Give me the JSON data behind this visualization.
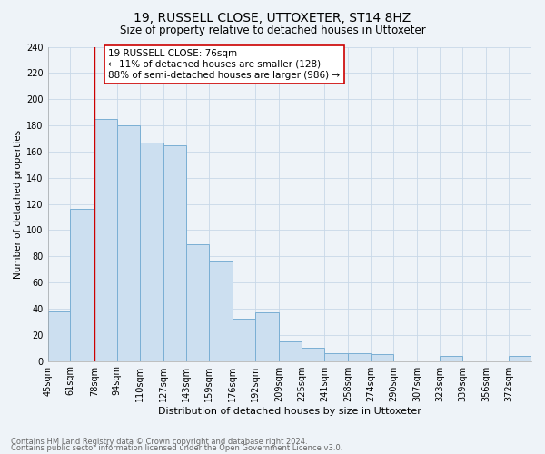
{
  "title": "19, RUSSELL CLOSE, UTTOXETER, ST14 8HZ",
  "subtitle": "Size of property relative to detached houses in Uttoxeter",
  "xlabel": "Distribution of detached houses by size in Uttoxeter",
  "ylabel": "Number of detached properties",
  "footnote1": "Contains HM Land Registry data © Crown copyright and database right 2024.",
  "footnote2": "Contains public sector information licensed under the Open Government Licence v3.0.",
  "bin_labels": [
    "45sqm",
    "61sqm",
    "78sqm",
    "94sqm",
    "110sqm",
    "127sqm",
    "143sqm",
    "159sqm",
    "176sqm",
    "192sqm",
    "209sqm",
    "225sqm",
    "241sqm",
    "258sqm",
    "274sqm",
    "290sqm",
    "307sqm",
    "323sqm",
    "339sqm",
    "356sqm",
    "372sqm"
  ],
  "bin_edges": [
    45,
    61,
    78,
    94,
    110,
    127,
    143,
    159,
    176,
    192,
    209,
    225,
    241,
    258,
    274,
    290,
    307,
    323,
    339,
    356,
    372,
    388
  ],
  "counts": [
    38,
    116,
    185,
    180,
    167,
    165,
    89,
    77,
    32,
    37,
    15,
    10,
    6,
    6,
    5,
    0,
    0,
    4,
    0,
    0,
    4
  ],
  "bar_facecolor": "#ccdff0",
  "bar_edgecolor": "#7aafd4",
  "grid_color": "#c8d8e8",
  "background_color": "#eef3f8",
  "vline_x": 78,
  "vline_color": "#cc0000",
  "annotation_text": "19 RUSSELL CLOSE: 76sqm\n← 11% of detached houses are smaller (128)\n88% of semi-detached houses are larger (986) →",
  "annotation_box_edgecolor": "#cc0000",
  "ylim": [
    0,
    240
  ],
  "yticks": [
    0,
    20,
    40,
    60,
    80,
    100,
    120,
    140,
    160,
    180,
    200,
    220,
    240
  ],
  "title_fontsize": 10,
  "subtitle_fontsize": 8.5,
  "ylabel_fontsize": 7.5,
  "xlabel_fontsize": 8,
  "footnote_fontsize": 6,
  "annot_fontsize": 7.5,
  "tick_fontsize": 7
}
